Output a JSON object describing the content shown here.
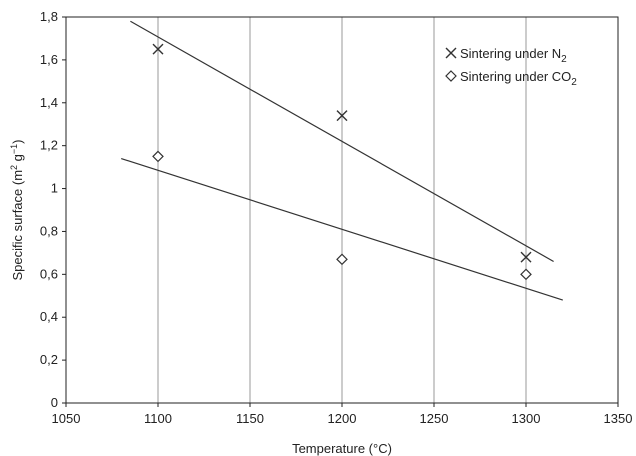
{
  "chart_data": {
    "type": "scatter",
    "title": "",
    "xlabel": "Temperature (°C)",
    "ylabel_parts": {
      "base": "Specific surface (m",
      "sup1": "2",
      "mid": " g",
      "sup2": "−1",
      "end": ")"
    },
    "xlim": [
      1050,
      1350
    ],
    "ylim": [
      0,
      1.8
    ],
    "x_ticks": [
      "1050",
      "1100",
      "1150",
      "1200",
      "1250",
      "1300",
      "1350"
    ],
    "y_ticks": [
      "0",
      "0,2",
      "0,4",
      "0,6",
      "0,8",
      "1",
      "1,2",
      "1,4",
      "1,6",
      "1,8"
    ],
    "grid": {
      "vertical": true,
      "horizontal": false
    },
    "legend_position": "top-right",
    "series": [
      {
        "name_parts": {
          "base": "Sintering under N",
          "sub": "2"
        },
        "marker": "cross",
        "points": [
          {
            "x": 1100,
            "y": 1.65
          },
          {
            "x": 1200,
            "y": 1.34
          },
          {
            "x": 1300,
            "y": 0.68
          }
        ],
        "trendline": {
          "x_start": 1085,
          "x_end": 1315,
          "y_start": 1.78,
          "y_end": 0.66
        }
      },
      {
        "name_parts": {
          "base": "Sintering under CO",
          "sub": "2"
        },
        "marker": "diamond",
        "points": [
          {
            "x": 1100,
            "y": 1.15
          },
          {
            "x": 1200,
            "y": 0.67
          },
          {
            "x": 1300,
            "y": 0.6
          }
        ],
        "trendline": {
          "x_start": 1080,
          "x_end": 1320,
          "y_start": 1.14,
          "y_end": 0.48
        }
      }
    ],
    "colors": {
      "axis": "#222222",
      "grid": "#9a9a9a",
      "line": "#333333",
      "marker": "#333333"
    }
  }
}
